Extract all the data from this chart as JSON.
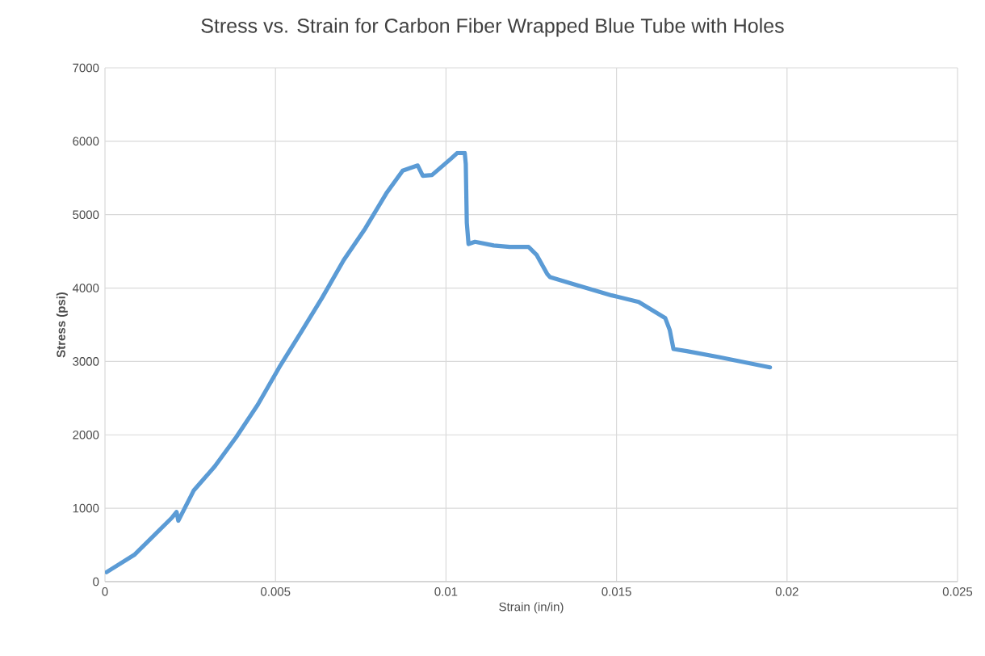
{
  "chart_data": {
    "type": "line",
    "title": "Stress vs. Strain for Carbon Fiber Wrapped Blue Tube with Holes",
    "xlabel": "Strain (in/in)",
    "ylabel": "Stress (psi)",
    "xlim": [
      0,
      0.025
    ],
    "xticks": [
      0,
      0.005,
      0.01,
      0.015,
      0.02,
      0.025
    ],
    "ylim": [
      0,
      7000
    ],
    "yticks": [
      0,
      1000,
      2000,
      3000,
      4000,
      5000,
      6000,
      7000
    ],
    "grid": true,
    "series": [
      {
        "color": "#5b9bd5",
        "x": [
          5e-05,
          0.00086,
          0.00197,
          0.0021,
          0.00215,
          0.0026,
          0.00322,
          0.00385,
          0.00448,
          0.00511,
          0.00574,
          0.00637,
          0.007,
          0.00763,
          0.00825,
          0.00873,
          0.00917,
          0.00932,
          0.00959,
          0.01014,
          0.01033,
          0.01055,
          0.01058,
          0.01061,
          0.01066,
          0.01085,
          0.0114,
          0.01187,
          0.01242,
          0.01266,
          0.01297,
          0.01305,
          0.01376,
          0.01486,
          0.01565,
          0.01643,
          0.01656,
          0.01667,
          0.01706,
          0.018,
          0.0195
        ],
        "values": [
          130,
          365,
          875,
          950,
          830,
          1240,
          1570,
          1970,
          2410,
          2920,
          3390,
          3870,
          4380,
          4810,
          5290,
          5600,
          5670,
          5530,
          5540,
          5760,
          5840,
          5840,
          5690,
          4890,
          4600,
          4630,
          4580,
          4560,
          4560,
          4450,
          4190,
          4150,
          4050,
          3900,
          3810,
          3590,
          3430,
          3170,
          3140,
          3060,
          2920
        ]
      }
    ]
  }
}
